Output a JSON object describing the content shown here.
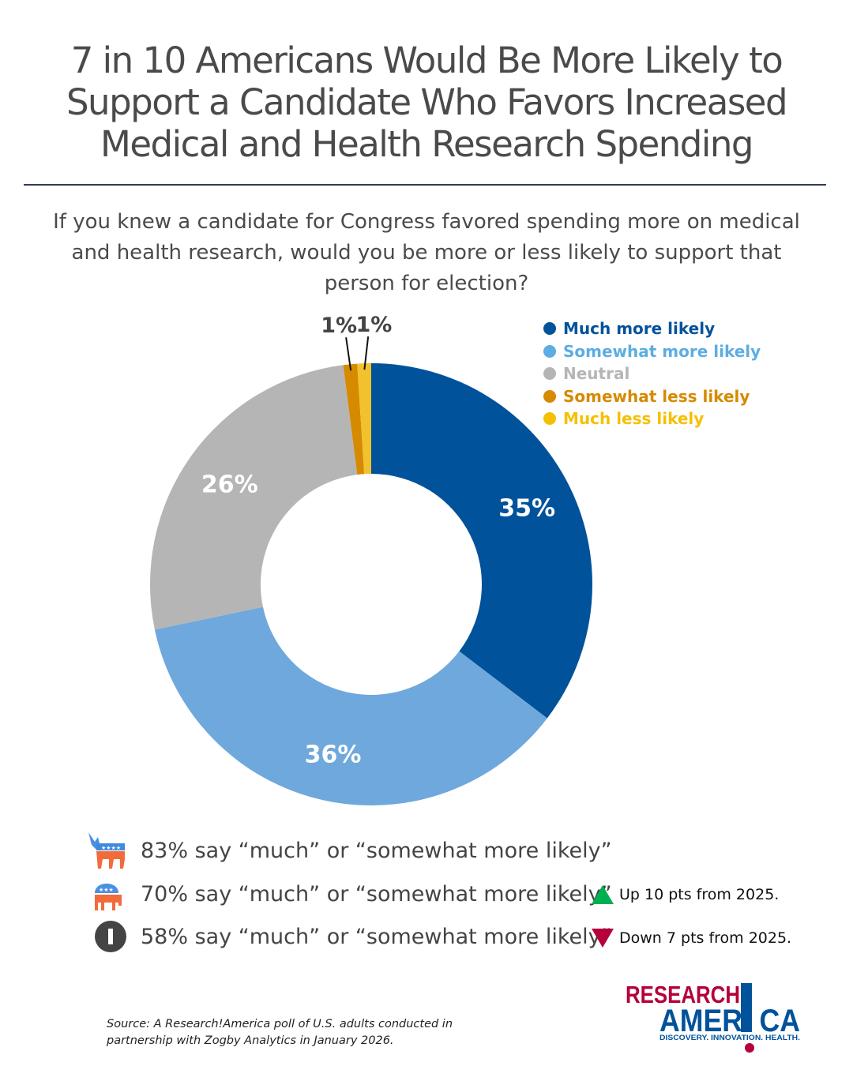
{
  "title": "7 in 10 Americans Would Be More Likely to Support a Candidate Who Favors Increased Medical and Health Research Spending",
  "question": "If you knew a candidate for Congress favored spending more on medical and health research, would you be more or less likely to support that person for election?",
  "chart_data": {
    "type": "pie",
    "donut": true,
    "categories": [
      "Much more likely",
      "Somewhat more likely",
      "Neutral",
      "Somewhat less likely",
      "Much less likely"
    ],
    "values": [
      35,
      36,
      26,
      1,
      1
    ],
    "labels": [
      "35%",
      "36%",
      "26%",
      "1%",
      "1%"
    ],
    "colors": [
      "#00529b",
      "#6fa8dc",
      "#b5b5b5",
      "#d68a00",
      "#f2c12e"
    ],
    "legend_colors": [
      "#00529b",
      "#5dade2",
      "#b5b5b5",
      "#d68a00",
      "#f5c000"
    ],
    "legend_position": "top-right"
  },
  "partisan": [
    {
      "icon": "democrat-donkey-icon",
      "text": "83% say “much” or “somewhat more likely”",
      "change": null
    },
    {
      "icon": "republican-elephant-icon",
      "text": "70% say “much” or “somewhat more likely”",
      "change": {
        "direction": "up",
        "text": "Up 10 pts from 2025.",
        "color": "#00b050"
      }
    },
    {
      "icon": "independent-icon",
      "text": "58% say “much” or “somewhat more likely”",
      "change": {
        "direction": "down",
        "text": "Down 7 pts from 2025.",
        "color": "#b5003a"
      }
    }
  ],
  "source": "Source: A Research!America poll of U.S. adults conducted in partnership with Zogby Analytics in January 2026.",
  "logo": {
    "line1": "RESEARCH",
    "line2": "AMERICA",
    "tagline": "DISCOVERY. INNOVATION. HEALTH."
  }
}
